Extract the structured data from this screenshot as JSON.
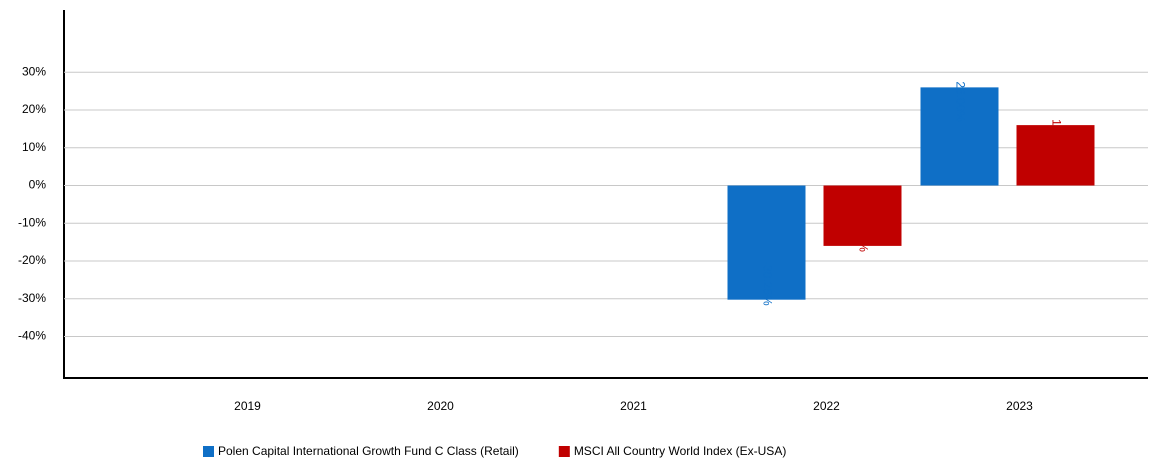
{
  "chart_data": {
    "type": "bar",
    "categories": [
      "2019",
      "2020",
      "2021",
      "2022",
      "2023"
    ],
    "series": [
      {
        "name": "Polen Capital International Growth Fund C Class (Retail)",
        "color": "#0f6fc6",
        "values": [
          null,
          null,
          null,
          -30.25,
          26.0
        ],
        "value_labels": [
          null,
          null,
          null,
          "-30.25%",
          "26.00%"
        ]
      },
      {
        "name": "MSCI All Country World Index (Ex-USA)",
        "color": "#c00000",
        "values": [
          null,
          null,
          null,
          -16.0,
          16.0
        ],
        "value_labels": [
          null,
          null,
          null,
          "-16.00%",
          "16.00%"
        ]
      }
    ],
    "ylim": [
      -51,
      46.5
    ],
    "yticks": [
      {
        "value": -40,
        "label": "-40%"
      },
      {
        "value": -30,
        "label": "-30%"
      },
      {
        "value": -20,
        "label": "-20%"
      },
      {
        "value": -10,
        "label": "-10%"
      },
      {
        "value": 0,
        "label": "0%"
      },
      {
        "value": 10,
        "label": "10%"
      },
      {
        "value": 20,
        "label": "20%"
      },
      {
        "value": 30,
        "label": "30%"
      }
    ],
    "grid": true,
    "legend": "bottom"
  }
}
